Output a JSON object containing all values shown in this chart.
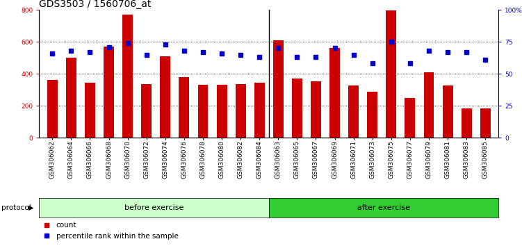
{
  "title": "GDS3503 / 1560706_at",
  "categories": [
    "GSM306062",
    "GSM306064",
    "GSM306066",
    "GSM306068",
    "GSM306070",
    "GSM306072",
    "GSM306074",
    "GSM306076",
    "GSM306078",
    "GSM306080",
    "GSM306082",
    "GSM306084",
    "GSM306063",
    "GSM306065",
    "GSM306067",
    "GSM306069",
    "GSM306071",
    "GSM306073",
    "GSM306075",
    "GSM306077",
    "GSM306079",
    "GSM306081",
    "GSM306083",
    "GSM306085"
  ],
  "bar_values": [
    360,
    500,
    345,
    570,
    770,
    335,
    510,
    380,
    330,
    330,
    335,
    345,
    610,
    370,
    355,
    560,
    325,
    290,
    795,
    248,
    410,
    325,
    185,
    185
  ],
  "percentile_values": [
    66,
    68,
    67,
    71,
    74,
    65,
    73,
    68,
    67,
    66,
    65,
    63,
    70,
    63,
    63,
    70,
    65,
    58,
    75,
    58,
    68,
    67,
    67,
    61
  ],
  "before_exercise_count": 12,
  "after_exercise_count": 12,
  "bar_color": "#cc0000",
  "percentile_color": "#0000cc",
  "ylim_left": [
    0,
    800
  ],
  "ylim_right": [
    0,
    100
  ],
  "yticks_left": [
    0,
    200,
    400,
    600,
    800
  ],
  "yticks_right": [
    0,
    25,
    50,
    75,
    100
  ],
  "ytick_labels_right": [
    "0",
    "25",
    "50",
    "75",
    "100%"
  ],
  "grid_values": [
    200,
    400,
    600
  ],
  "before_color": "#ccffcc",
  "after_color": "#33cc33",
  "protocol_label": "protocol",
  "before_label": "before exercise",
  "after_label": "after exercise",
  "legend_count_label": "count",
  "legend_percentile_label": "percentile rank within the sample",
  "title_fontsize": 10,
  "tick_fontsize": 6.5,
  "band_fontsize": 8,
  "legend_fontsize": 7.5
}
